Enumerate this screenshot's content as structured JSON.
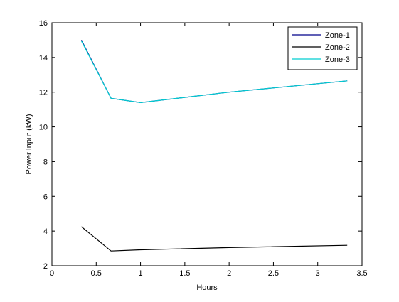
{
  "chart_data": {
    "type": "line",
    "xlabel": "Hours",
    "ylabel": "Power Input (kW)",
    "xlim": [
      0,
      3.5
    ],
    "ylim": [
      2,
      16
    ],
    "xticks": [
      0,
      0.5,
      1,
      1.5,
      2,
      2.5,
      3,
      3.5
    ],
    "xtick_labels": [
      "0",
      "0.5",
      "1",
      "1.5",
      "2",
      "2.5",
      "3",
      "3.5"
    ],
    "yticks": [
      2,
      4,
      6,
      8,
      10,
      12,
      14,
      16
    ],
    "ytick_labels": [
      "2",
      "4",
      "6",
      "8",
      "10",
      "12",
      "14",
      "16"
    ],
    "grid": false,
    "legend": "top-right",
    "series": [
      {
        "name": "Zone-1",
        "color": "#00008b",
        "x": [
          0.333,
          0.667,
          1.0,
          2.0,
          3.333
        ],
        "y": [
          15.0,
          11.65,
          11.4,
          12.0,
          12.65
        ]
      },
      {
        "name": "Zone-2",
        "color": "#000000",
        "x": [
          0.333,
          0.667,
          1.0,
          2.0,
          3.333
        ],
        "y": [
          4.25,
          2.85,
          2.92,
          3.05,
          3.18
        ]
      },
      {
        "name": "Zone-3",
        "color": "#00ced1",
        "x": [
          0.333,
          0.667,
          1.0,
          2.0,
          3.333
        ],
        "y": [
          14.95,
          11.65,
          11.4,
          12.0,
          12.65
        ]
      }
    ]
  }
}
